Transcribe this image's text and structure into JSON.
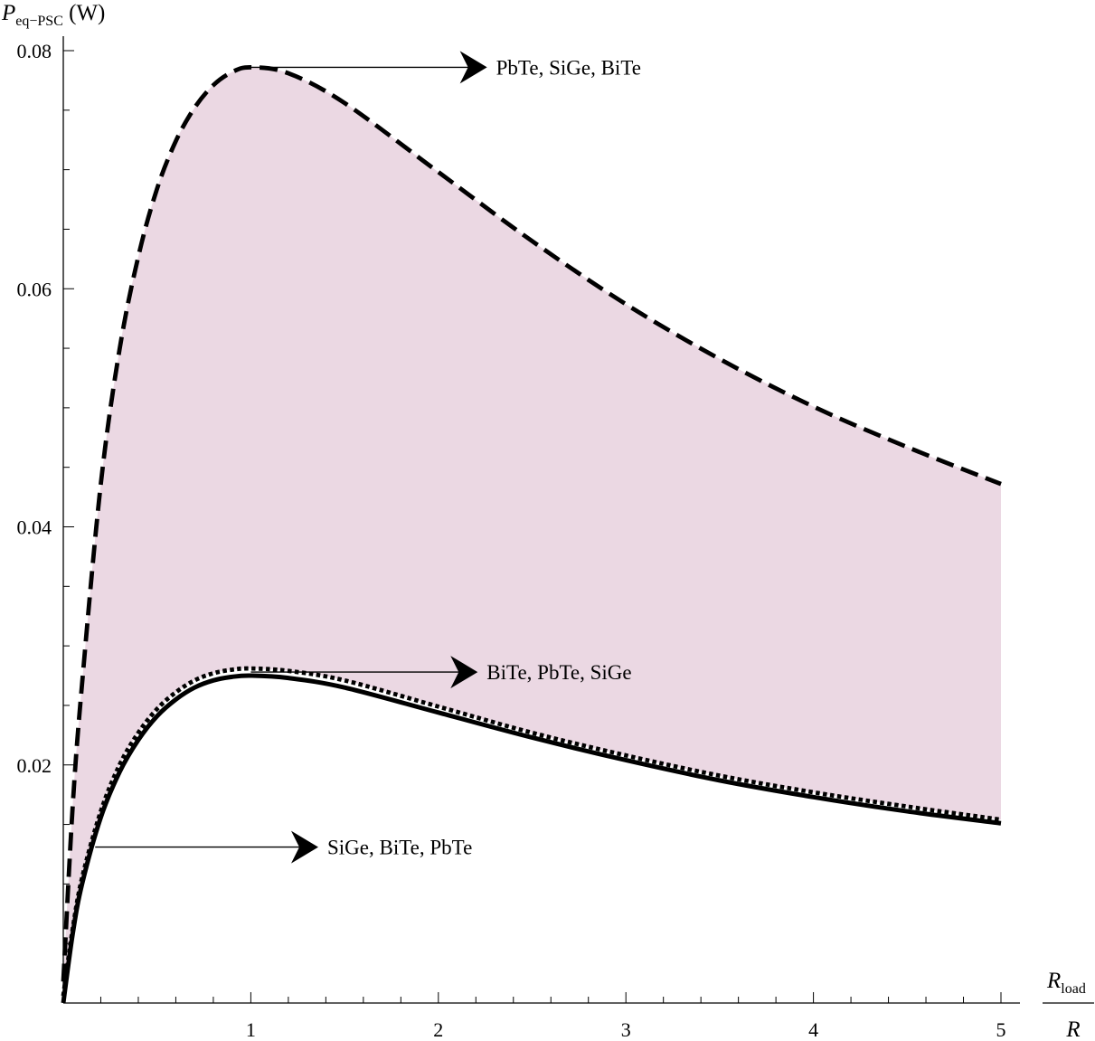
{
  "chart_data": {
    "type": "line",
    "ylabel": {
      "main": "P",
      "sub": "eq−PSC",
      "unit": " (W)"
    },
    "xlabel": {
      "numerator_main": "R",
      "numerator_sub": "load",
      "denominator": "R"
    },
    "xlim": [
      0,
      5
    ],
    "ylim": [
      0,
      0.08
    ],
    "x_ticks": [
      1,
      2,
      3,
      4,
      5
    ],
    "x_tick_labels": [
      "1",
      "2",
      "3",
      "4",
      "5"
    ],
    "x_minor_step": 0.2,
    "y_ticks": [
      0.02,
      0.04,
      0.06,
      0.08
    ],
    "y_tick_labels": [
      "0.02",
      "0.04",
      "0.06",
      "0.08"
    ],
    "y_minor_step": 0.005,
    "grid": false,
    "legend": "none",
    "fill_color": "#ebd8e3",
    "fill_between": "upper-dashed and lower-dotted curves",
    "series": [
      {
        "style": "dashed",
        "x": [
          0,
          0.05,
          0.1,
          0.2,
          0.3,
          0.4,
          0.5,
          0.6,
          0.7,
          0.8,
          0.9,
          1.0,
          1.2,
          1.5,
          2.0,
          2.5,
          3.0,
          3.5,
          4.0,
          4.5,
          5.0
        ],
        "y": [
          0.0018,
          0.0165,
          0.0268,
          0.0436,
          0.0549,
          0.0627,
          0.0684,
          0.0724,
          0.0752,
          0.0771,
          0.0782,
          0.0786,
          0.0781,
          0.0756,
          0.0698,
          0.064,
          0.0587,
          0.0541,
          0.0501,
          0.0467,
          0.0436
        ]
      },
      {
        "style": "dotted",
        "x": [
          0,
          0.05,
          0.1,
          0.2,
          0.3,
          0.4,
          0.5,
          0.6,
          0.7,
          0.8,
          0.9,
          1.0,
          1.2,
          1.5,
          2.0,
          2.5,
          3.0,
          3.5,
          4.0,
          4.5,
          5.0
        ],
        "y": [
          0.0006,
          0.0062,
          0.0105,
          0.0161,
          0.02,
          0.0227,
          0.0247,
          0.0261,
          0.0271,
          0.0277,
          0.028,
          0.0281,
          0.0279,
          0.0271,
          0.0249,
          0.0227,
          0.0208,
          0.0191,
          0.0177,
          0.0165,
          0.0154
        ]
      },
      {
        "style": "solid",
        "x": [
          0,
          0.05,
          0.1,
          0.2,
          0.3,
          0.4,
          0.5,
          0.6,
          0.7,
          0.8,
          0.9,
          1.0,
          1.2,
          1.5,
          2.0,
          2.5,
          3.0,
          3.5,
          4.0,
          4.5,
          5.0
        ],
        "y": [
          0.0,
          0.0058,
          0.01,
          0.0156,
          0.0194,
          0.0221,
          0.0241,
          0.0255,
          0.0265,
          0.0271,
          0.0274,
          0.0275,
          0.0273,
          0.0265,
          0.0244,
          0.0223,
          0.0204,
          0.0187,
          0.0173,
          0.0161,
          0.0151
        ]
      }
    ],
    "annotations": [
      {
        "text": "PbTe, SiGe, BiTe",
        "from": [
          1.0,
          0.0786
        ],
        "to": [
          2.25,
          0.0786
        ]
      },
      {
        "text": "BiTe, PbTe, SiGe",
        "from": [
          1.0,
          0.0278
        ],
        "to": [
          2.2,
          0.0278
        ]
      },
      {
        "text": "SiGe, BiTe, PbTe",
        "from": [
          0.17,
          0.0131
        ],
        "to": [
          1.35,
          0.0131
        ]
      }
    ]
  }
}
